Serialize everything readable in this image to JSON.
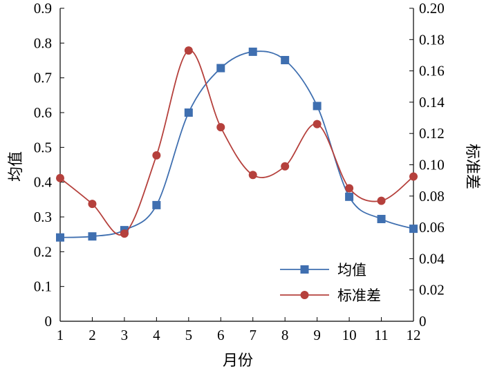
{
  "chart_data": {
    "type": "line",
    "x": [
      1,
      2,
      3,
      4,
      5,
      6,
      7,
      8,
      9,
      10,
      11,
      12
    ],
    "xlabel": "月份",
    "ylabel_left": "均值",
    "ylabel_right": "标准差",
    "xlim": [
      1,
      12
    ],
    "ylim_left": [
      0,
      0.9
    ],
    "ylim_right": [
      0,
      0.2
    ],
    "x_ticks": [
      "1",
      "2",
      "3",
      "4",
      "5",
      "6",
      "7",
      "8",
      "9",
      "10",
      "11",
      "12"
    ],
    "y_left_ticks": [
      "0",
      "0.1",
      "0.2",
      "0.3",
      "0.4",
      "0.5",
      "0.6",
      "0.7",
      "0.8",
      "0.9"
    ],
    "y_right_ticks": [
      "0",
      "0.02",
      "0.04",
      "0.06",
      "0.08",
      "0.10",
      "0.12",
      "0.14",
      "0.16",
      "0.18",
      "0.20"
    ],
    "grid": false,
    "legend_position": "bottom-right",
    "series": [
      {
        "name": "均值",
        "axis": "left",
        "color": "#3f6fb0",
        "marker": "square",
        "values": [
          0.241,
          0.244,
          0.262,
          0.334,
          0.6,
          0.728,
          0.775,
          0.751,
          0.619,
          0.358,
          0.294,
          0.266
        ]
      },
      {
        "name": "标准差",
        "axis": "right",
        "color": "#b5403c",
        "marker": "circle",
        "values": [
          0.0915,
          0.075,
          0.056,
          0.106,
          0.173,
          0.124,
          0.0935,
          0.099,
          0.126,
          0.085,
          0.077,
          0.0925
        ]
      }
    ]
  }
}
